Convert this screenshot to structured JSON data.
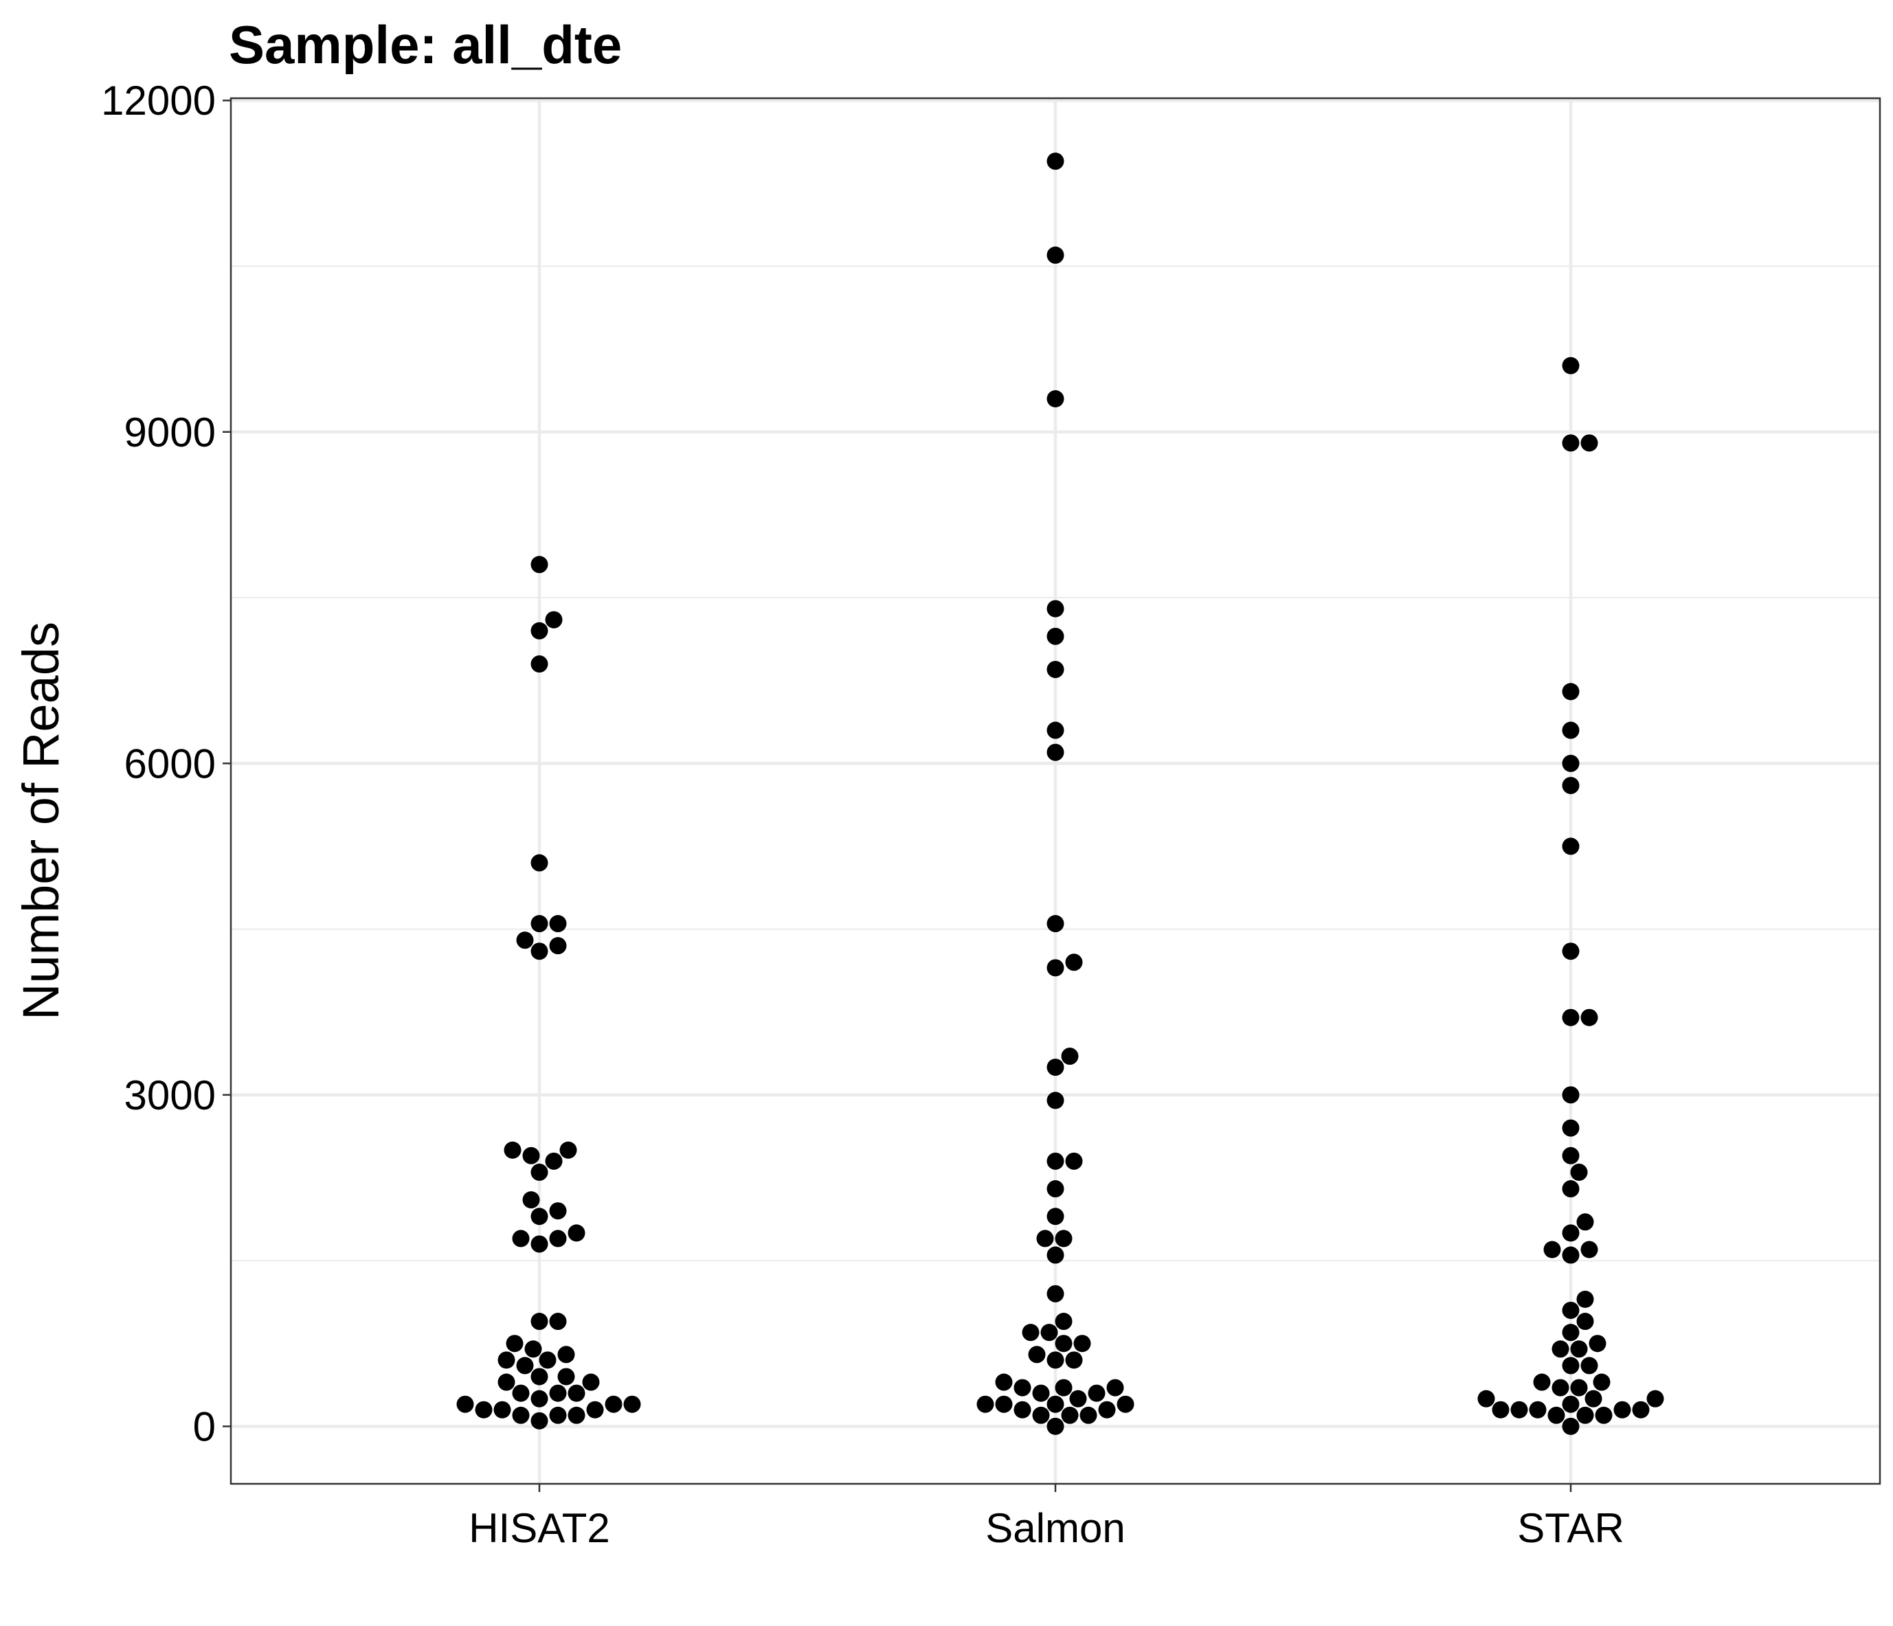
{
  "chart_data": {
    "type": "scatter",
    "subtype": "beeswarm",
    "title": "Sample: all_dte",
    "xlabel": "",
    "ylabel": "Number of Reads",
    "ylim": [
      -520,
      12020
    ],
    "y_ticks": [
      0,
      3000,
      6000,
      9000,
      12000
    ],
    "y_tick_labels": [
      "0",
      "3000",
      "6000",
      "9000",
      "12000"
    ],
    "categories": [
      "HISAT2",
      "Salmon",
      "STAR"
    ],
    "grid": true,
    "legend": "none",
    "point_color": "#000000",
    "series": [
      {
        "values": [
          7800,
          7200,
          7300,
          6900,
          5100,
          4550,
          4550,
          4400,
          4350,
          4300,
          2500,
          2450,
          2500,
          2400,
          2300,
          2050,
          1950,
          1900,
          1750,
          1700,
          1700,
          1650,
          950,
          950,
          750,
          700,
          650,
          600,
          600,
          550,
          450,
          450,
          400,
          400,
          300,
          300,
          300,
          250,
          200,
          200,
          200,
          150,
          150,
          150,
          100,
          100,
          100,
          50
        ]
      },
      {
        "values": [
          11450,
          10600,
          9300,
          7400,
          7150,
          6850,
          6300,
          6100,
          4550,
          4200,
          4150,
          3350,
          3250,
          2950,
          2400,
          2400,
          2150,
          1900,
          1700,
          1700,
          1550,
          1200,
          950,
          850,
          850,
          750,
          750,
          650,
          600,
          600,
          400,
          350,
          350,
          350,
          300,
          300,
          250,
          200,
          200,
          200,
          200,
          150,
          150,
          100,
          100,
          100,
          0
        ]
      },
      {
        "values": [
          9600,
          8900,
          8900,
          6650,
          6300,
          6000,
          5800,
          5250,
          4300,
          3700,
          3700,
          3000,
          2700,
          2450,
          2300,
          2150,
          1850,
          1750,
          1600,
          1600,
          1550,
          1150,
          1050,
          950,
          850,
          750,
          700,
          700,
          550,
          550,
          400,
          400,
          350,
          350,
          250,
          250,
          250,
          200,
          150,
          150,
          150,
          150,
          150,
          100,
          100,
          100,
          0
        ]
      }
    ]
  }
}
